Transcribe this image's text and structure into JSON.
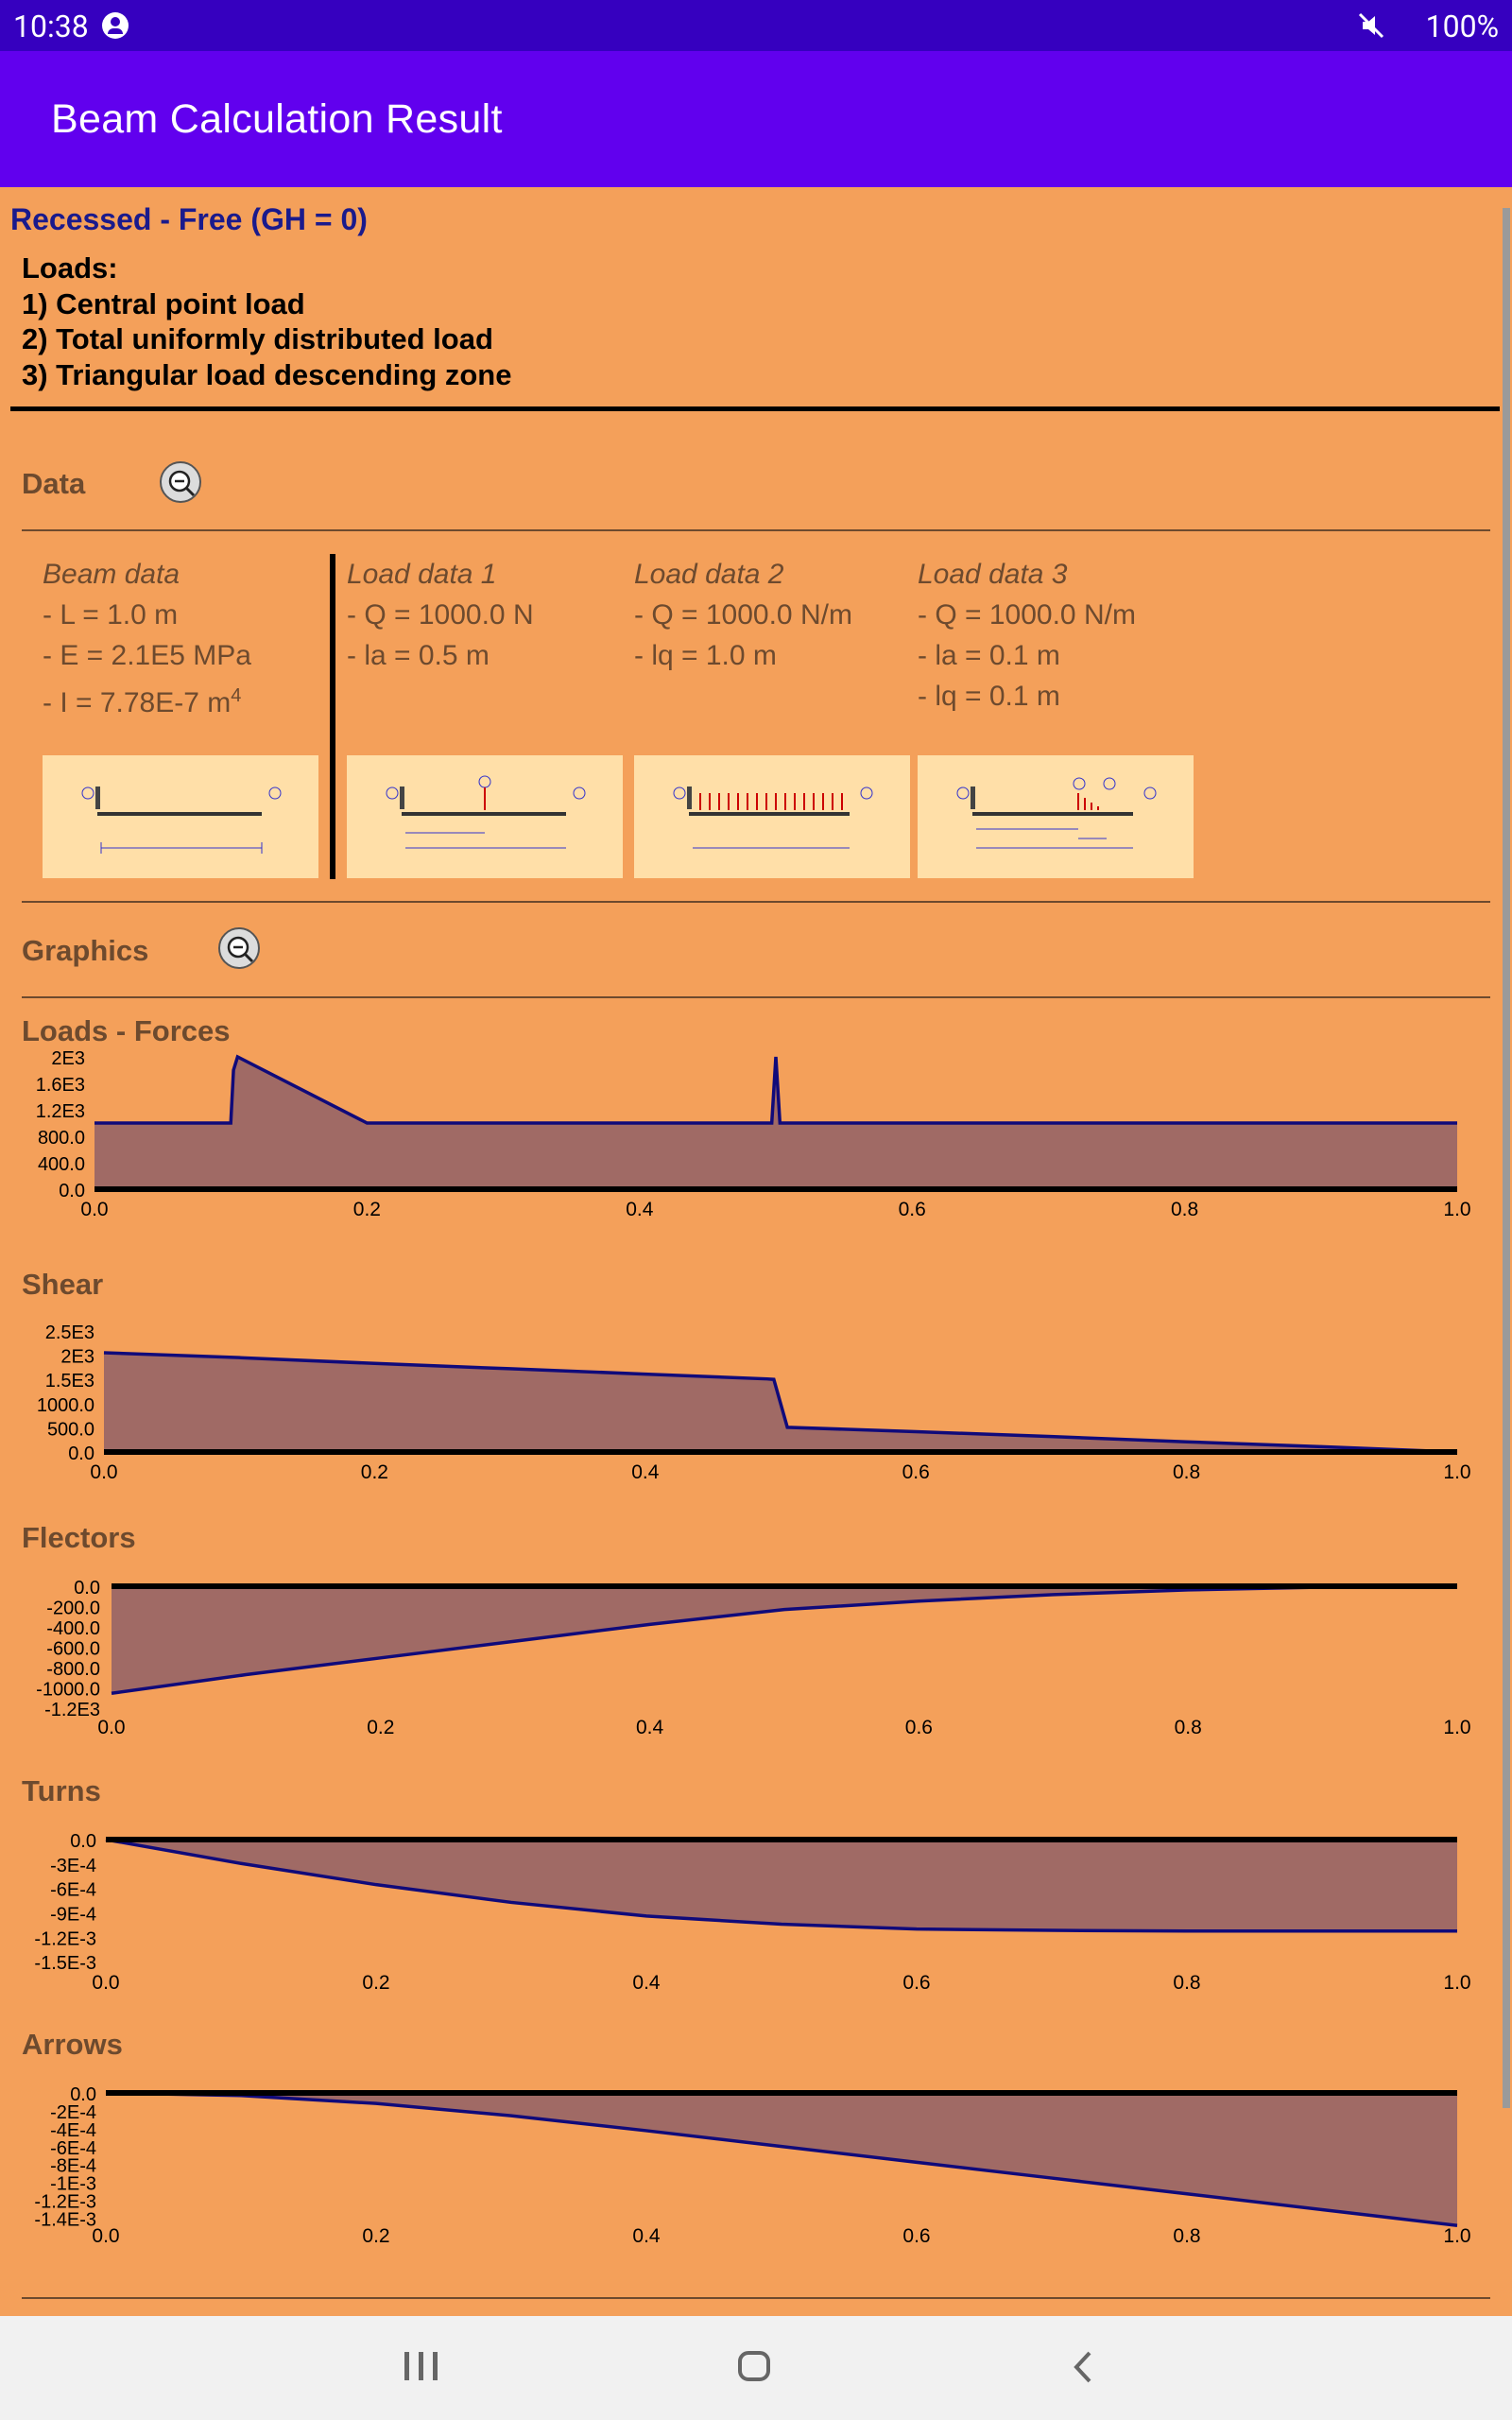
{
  "status_bar": {
    "time": "10:38",
    "battery": "100%"
  },
  "app_bar": {
    "title": "Beam Calculation Result"
  },
  "beam_type": "Recessed - Free (GH = 0)",
  "loads": {
    "title": "Loads:",
    "items": [
      "1) Central point load",
      "2) Total uniformly distributed load",
      "3) Triangular load descending zone"
    ]
  },
  "data_section": {
    "label": "Data",
    "columns": [
      {
        "heading": "Beam data",
        "lines": [
          "- L = 1.0 m",
          "- E = 2.1E5 MPa",
          "- I = 7.78E-7 m"
        ],
        "sup": "4"
      },
      {
        "heading": "Load data 1",
        "lines": [
          "- Q = 1000.0 N",
          "- la = 0.5 m"
        ]
      },
      {
        "heading": "Load data 2",
        "lines": [
          "- Q = 1000.0 N/m",
          "- lq = 1.0 m"
        ]
      },
      {
        "heading": "Load data 3",
        "lines": [
          "- Q = 1000.0 N/m",
          "- la = 0.1 m",
          "- lq = 0.1 m"
        ]
      }
    ]
  },
  "graphics_section": {
    "label": "Graphics"
  },
  "chart_data": [
    {
      "type": "area",
      "title": "Loads - Forces",
      "x": [
        0.0,
        0.1,
        0.102,
        0.105,
        0.2,
        0.49,
        0.497,
        0.5,
        0.503,
        0.51,
        1.0
      ],
      "y": [
        1000,
        1000,
        1800,
        2000,
        1000,
        1000,
        1000,
        2000,
        1000,
        1000,
        1000
      ],
      "yticks": [
        "2E3",
        "1.6E3",
        "1.2E3",
        "800.0",
        "400.0",
        "0.0"
      ],
      "xticks": [
        "0.0",
        "0.2",
        "0.4",
        "0.6",
        "0.8",
        "1.0"
      ],
      "ylim": [
        0,
        2000
      ],
      "xlim": [
        0,
        1
      ]
    },
    {
      "type": "area",
      "title": "Shear",
      "x": [
        0.0,
        0.1,
        0.2,
        0.3,
        0.4,
        0.49,
        0.495,
        0.505,
        0.6,
        0.7,
        0.8,
        0.9,
        1.0
      ],
      "y": [
        2050,
        1950,
        1830,
        1720,
        1610,
        1510,
        1500,
        510,
        420,
        320,
        210,
        110,
        0
      ],
      "yticks": [
        "2.5E3",
        "2E3",
        "1.5E3",
        "1000.0",
        "500.0",
        "0.0"
      ],
      "xticks": [
        "0.0",
        "0.2",
        "0.4",
        "0.6",
        "0.8",
        "1.0"
      ],
      "ylim": [
        0,
        2500
      ],
      "xlim": [
        0,
        1
      ]
    },
    {
      "type": "area",
      "title": "Flectors",
      "x": [
        0.0,
        0.1,
        0.2,
        0.3,
        0.4,
        0.5,
        0.6,
        0.7,
        0.8,
        0.9,
        1.0
      ],
      "y": [
        -1150,
        -950,
        -770,
        -590,
        -410,
        -250,
        -160,
        -90,
        -40,
        -10,
        0
      ],
      "yticks": [
        "0.0",
        "-200.0",
        "-400.0",
        "-600.0",
        "-800.0",
        "-1000.0",
        "-1.2E3"
      ],
      "xticks": [
        "0.0",
        "0.2",
        "0.4",
        "0.6",
        "0.8",
        "1.0"
      ],
      "ylim": [
        -1300,
        0
      ],
      "xlim": [
        0,
        1
      ]
    },
    {
      "type": "area",
      "title": "Turns",
      "x": [
        0.0,
        0.1,
        0.2,
        0.3,
        0.4,
        0.5,
        0.6,
        0.7,
        0.8,
        0.9,
        1.0
      ],
      "y": [
        0,
        -0.00035,
        -0.00066,
        -0.00092,
        -0.00112,
        -0.00124,
        -0.00131,
        -0.00133,
        -0.00134,
        -0.00134,
        -0.00134
      ],
      "yticks": [
        "0.0",
        "-3E-4",
        "-6E-4",
        "-9E-4",
        "-1.2E-3",
        "-1.5E-3"
      ],
      "xticks": [
        "0.0",
        "0.2",
        "0.4",
        "0.6",
        "0.8",
        "1.0"
      ],
      "ylim": [
        -0.0018,
        0
      ],
      "xlim": [
        0,
        1
      ]
    },
    {
      "type": "area",
      "title": "Arrows",
      "x": [
        0.0,
        0.1,
        0.2,
        0.3,
        0.4,
        0.5,
        0.6,
        0.7,
        0.8,
        0.9,
        1.0
      ],
      "y": [
        0,
        -3e-05,
        -0.00012,
        -0.00026,
        -0.00043,
        -0.00061,
        -0.00079,
        -0.00097,
        -0.00115,
        -0.00133,
        -0.00151
      ],
      "yticks": [
        "0.0",
        "-2E-4",
        "-4E-4",
        "-6E-4",
        "-8E-4",
        "-1E-3",
        "-1.2E-3",
        "-1.4E-3"
      ],
      "xticks": [
        "0.0",
        "0.2",
        "0.4",
        "0.6",
        "0.8",
        "1.0"
      ],
      "ylim": [
        -0.0014,
        0
      ],
      "xlim": [
        0,
        1
      ]
    }
  ]
}
